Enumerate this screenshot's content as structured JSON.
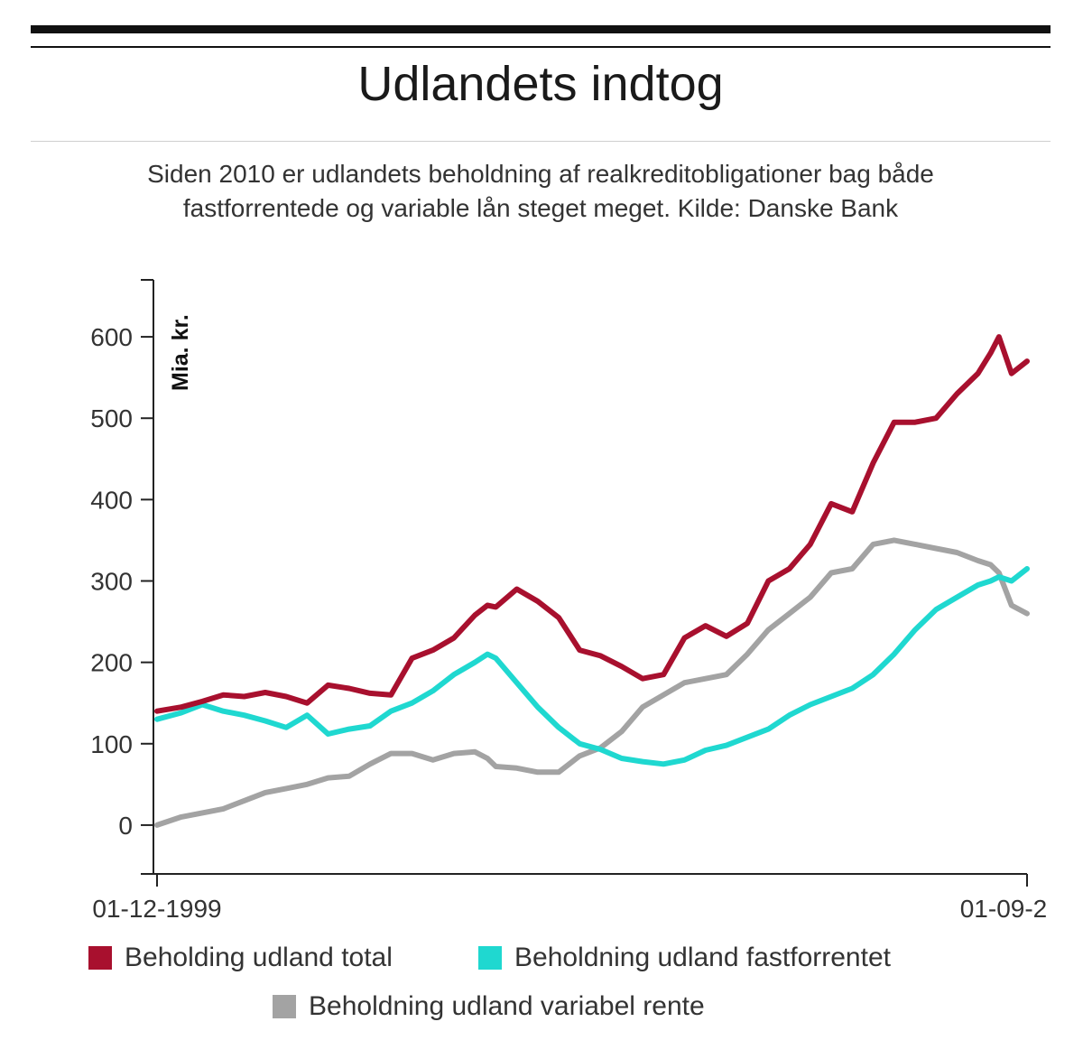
{
  "header": {
    "title": "Udlandets indtog",
    "subtitle_line1": "Siden 2010 er udlandets beholdning af realkreditobligationer bag både",
    "subtitle_line2": "fastforrentede og variable lån steget meget. Kilde: Danske Bank"
  },
  "chart_data": {
    "type": "line",
    "title": "Udlandets indtog",
    "ylabel": "Mia. kr.",
    "xlabel": "",
    "ylim": [
      -60,
      670
    ],
    "yticks": [
      0,
      100,
      200,
      300,
      400,
      500,
      600
    ],
    "x_tick_labels": [
      "01-12-1999",
      "01-09-2"
    ],
    "x_start": "1999-12",
    "x_end": "2020-09",
    "x": [
      1999.92,
      2000.5,
      2001.0,
      2001.5,
      2002.0,
      2002.5,
      2003.0,
      2003.5,
      2004.0,
      2004.5,
      2005.0,
      2005.5,
      2006.0,
      2006.5,
      2007.0,
      2007.5,
      2007.8,
      2008.0,
      2008.5,
      2009.0,
      2009.5,
      2010.0,
      2010.5,
      2011.0,
      2011.5,
      2012.0,
      2012.5,
      2013.0,
      2013.5,
      2014.0,
      2014.5,
      2015.0,
      2015.5,
      2016.0,
      2016.5,
      2017.0,
      2017.5,
      2018.0,
      2018.5,
      2019.0,
      2019.5,
      2019.8,
      2020.0,
      2020.3,
      2020.67
    ],
    "series": [
      {
        "name": "Beholding udland total",
        "color": "#a8102e",
        "values": [
          140,
          145,
          152,
          160,
          158,
          163,
          158,
          150,
          172,
          168,
          162,
          160,
          205,
          215,
          230,
          258,
          270,
          268,
          290,
          275,
          255,
          215,
          208,
          195,
          180,
          185,
          230,
          245,
          232,
          248,
          300,
          315,
          345,
          395,
          385,
          445,
          495,
          495,
          500,
          530,
          555,
          580,
          600,
          555,
          570
        ]
      },
      {
        "name": "Beholdning udland fastforrentet",
        "color": "#1fd8d0",
        "values": [
          130,
          138,
          148,
          140,
          135,
          128,
          120,
          135,
          112,
          118,
          122,
          140,
          150,
          165,
          185,
          200,
          210,
          205,
          175,
          145,
          120,
          100,
          93,
          82,
          78,
          75,
          80,
          92,
          98,
          108,
          118,
          135,
          148,
          158,
          168,
          185,
          210,
          240,
          265,
          280,
          295,
          300,
          305,
          300,
          315
        ]
      },
      {
        "name": "Beholdning udland variabel rente",
        "color": "#a3a3a3",
        "values": [
          0,
          10,
          15,
          20,
          30,
          40,
          45,
          50,
          58,
          60,
          75,
          88,
          88,
          80,
          88,
          90,
          82,
          72,
          70,
          65,
          65,
          85,
          95,
          115,
          145,
          160,
          175,
          180,
          185,
          210,
          240,
          260,
          280,
          310,
          315,
          345,
          350,
          345,
          340,
          335,
          325,
          320,
          310,
          270,
          260
        ]
      }
    ],
    "legend": [
      {
        "label": "Beholding udland total",
        "color": "#a8102e"
      },
      {
        "label": "Beholdning udland fastforrentet",
        "color": "#1fd8d0"
      },
      {
        "label": "Beholdning udland variabel rente",
        "color": "#a3a3a3"
      }
    ],
    "legend_position": "bottom",
    "grid": false
  }
}
